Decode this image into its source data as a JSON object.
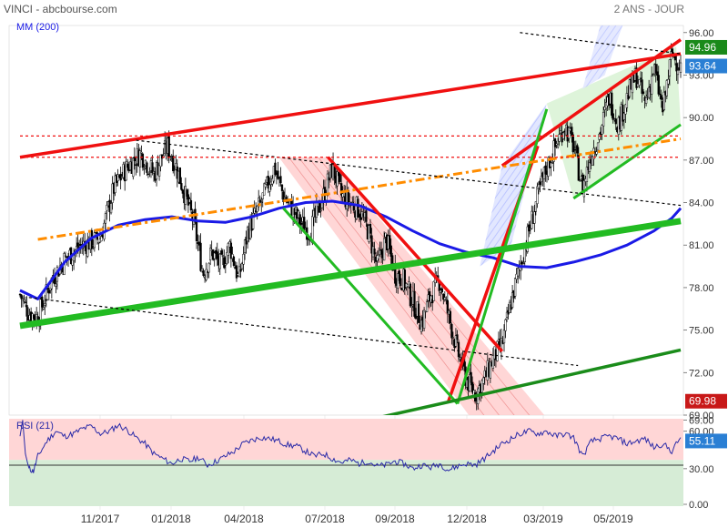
{
  "header": {
    "title": "VINCI - abcbourse.com",
    "period": "2 ANS - JOUR",
    "ma_label": "MM (200)",
    "rsi_label": "RSI (21)"
  },
  "colors": {
    "ma": "#1a1ae6",
    "candle": "#000000",
    "trend_red": "#f01010",
    "trend_green": "#22bb22",
    "trend_dark_green": "#1a8c1a",
    "trend_orange": "#ff8c00",
    "rsi_line": "#2a2aa8",
    "rsi_upper_bg": "#ffd6d6",
    "rsi_lower_bg": "#d6ecd6",
    "badge_green": "#1a8a1a",
    "badge_blue": "#2a7fd4",
    "badge_red": "#c81818"
  },
  "chart_data": [
    {
      "type": "candlestick",
      "title": "VINCI - abcbourse.com",
      "subtitle": "2 ANS - JOUR",
      "x_tick_labels": [
        "11/2017",
        "01/2018",
        "04/2018",
        "07/2018",
        "09/2018",
        "12/2018",
        "03/2019",
        "05/2019"
      ],
      "y_tick_labels": [
        "96.00",
        "93.00",
        "90.00",
        "87.00",
        "84.00",
        "81.00",
        "78.00",
        "75.00",
        "72.00",
        "69.00"
      ],
      "ylim": [
        69,
        96.5
      ],
      "price_badges": [
        {
          "value": "94.96",
          "y": 94.96,
          "color": "#1a8a1a"
        },
        {
          "value": "93.64",
          "y": 93.64,
          "color": "#2a7fd4"
        },
        {
          "value": "69.98",
          "y": 69.98,
          "color": "#c81818"
        }
      ],
      "price_path": [
        {
          "x": 0,
          "y": 77.5
        },
        {
          "x": 2,
          "y": 76.2
        },
        {
          "x": 4,
          "y": 75.9
        },
        {
          "x": 7,
          "y": 78.5
        },
        {
          "x": 10,
          "y": 80.0
        },
        {
          "x": 14,
          "y": 81.0
        },
        {
          "x": 18,
          "y": 81.5
        },
        {
          "x": 21,
          "y": 85.0
        },
        {
          "x": 24,
          "y": 86.5
        },
        {
          "x": 27,
          "y": 87.5
        },
        {
          "x": 30,
          "y": 86.0
        },
        {
          "x": 33,
          "y": 88.0
        },
        {
          "x": 35,
          "y": 86.5
        },
        {
          "x": 37,
          "y": 84.5
        },
        {
          "x": 39,
          "y": 82.5
        },
        {
          "x": 41,
          "y": 79.0
        },
        {
          "x": 43,
          "y": 80.5
        },
        {
          "x": 45,
          "y": 79.5
        },
        {
          "x": 47,
          "y": 81.0
        },
        {
          "x": 49,
          "y": 78.5
        },
        {
          "x": 51,
          "y": 82.0
        },
        {
          "x": 54,
          "y": 84.0
        },
        {
          "x": 57,
          "y": 86.5
        },
        {
          "x": 59,
          "y": 84.5
        },
        {
          "x": 61,
          "y": 83.5
        },
        {
          "x": 63,
          "y": 82.5
        },
        {
          "x": 65,
          "y": 82.0
        },
        {
          "x": 68,
          "y": 84.5
        },
        {
          "x": 70,
          "y": 86.5
        },
        {
          "x": 72,
          "y": 84.5
        },
        {
          "x": 74,
          "y": 84.0
        },
        {
          "x": 76,
          "y": 83.5
        },
        {
          "x": 78,
          "y": 82.0
        },
        {
          "x": 80,
          "y": 79.5
        },
        {
          "x": 82,
          "y": 81.5
        },
        {
          "x": 84,
          "y": 79.0
        },
        {
          "x": 86,
          "y": 78.5
        },
        {
          "x": 88,
          "y": 77.0
        },
        {
          "x": 90,
          "y": 75.5
        },
        {
          "x": 92,
          "y": 77.5
        },
        {
          "x": 94,
          "y": 78.5
        },
        {
          "x": 96,
          "y": 76.0
        },
        {
          "x": 98,
          "y": 73.5
        },
        {
          "x": 100,
          "y": 71.5
        },
        {
          "x": 102,
          "y": 70.5
        },
        {
          "x": 104,
          "y": 71.5
        },
        {
          "x": 106,
          "y": 73.0
        },
        {
          "x": 108,
          "y": 74.0
        },
        {
          "x": 110,
          "y": 77.0
        },
        {
          "x": 112,
          "y": 79.5
        },
        {
          "x": 114,
          "y": 82.0
        },
        {
          "x": 116,
          "y": 84.5
        },
        {
          "x": 118,
          "y": 86.5
        },
        {
          "x": 120,
          "y": 88.0
        },
        {
          "x": 122,
          "y": 89.5
        },
        {
          "x": 124,
          "y": 88.0
        },
        {
          "x": 126,
          "y": 85.0
        },
        {
          "x": 128,
          "y": 87.5
        },
        {
          "x": 130,
          "y": 89.0
        },
        {
          "x": 132,
          "y": 91.5
        },
        {
          "x": 134,
          "y": 89.5
        },
        {
          "x": 136,
          "y": 91.5
        },
        {
          "x": 138,
          "y": 93.0
        },
        {
          "x": 140,
          "y": 91.0
        },
        {
          "x": 142,
          "y": 93.5
        },
        {
          "x": 144,
          "y": 90.5
        },
        {
          "x": 146,
          "y": 94.5
        },
        {
          "x": 148,
          "y": 93.6
        }
      ],
      "ma200_path": [
        {
          "x": 0,
          "y": 77.8
        },
        {
          "x": 4,
          "y": 77.2
        },
        {
          "x": 10,
          "y": 79.8
        },
        {
          "x": 16,
          "y": 81.5
        },
        {
          "x": 22,
          "y": 82.4
        },
        {
          "x": 28,
          "y": 82.8
        },
        {
          "x": 34,
          "y": 83.0
        },
        {
          "x": 40,
          "y": 82.7
        },
        {
          "x": 46,
          "y": 82.6
        },
        {
          "x": 52,
          "y": 83.0
        },
        {
          "x": 58,
          "y": 83.6
        },
        {
          "x": 64,
          "y": 84.0
        },
        {
          "x": 70,
          "y": 84.1
        },
        {
          "x": 76,
          "y": 83.8
        },
        {
          "x": 82,
          "y": 83.0
        },
        {
          "x": 88,
          "y": 82.0
        },
        {
          "x": 94,
          "y": 81.1
        },
        {
          "x": 100,
          "y": 80.5
        },
        {
          "x": 106,
          "y": 80.1
        },
        {
          "x": 112,
          "y": 79.5
        },
        {
          "x": 118,
          "y": 79.4
        },
        {
          "x": 124,
          "y": 79.8
        },
        {
          "x": 130,
          "y": 80.3
        },
        {
          "x": 136,
          "y": 81.0
        },
        {
          "x": 142,
          "y": 82.0
        },
        {
          "x": 146,
          "y": 82.9
        },
        {
          "x": 148,
          "y": 83.6
        }
      ],
      "series": [
        {
          "name": "MM (200)"
        }
      ],
      "trendlines": [
        {
          "style": "red",
          "points": [
            [
              0,
              87.2
            ],
            [
              148,
              94.5
            ]
          ]
        },
        {
          "style": "red",
          "points": [
            [
              96,
              70.0
            ],
            [
              116,
              88.0
            ]
          ]
        },
        {
          "style": "red",
          "points": [
            [
              108,
              86.6
            ],
            [
              148,
              95.5
            ]
          ]
        },
        {
          "style": "red",
          "points": [
            [
              69,
              87.2
            ],
            [
              108,
              73.5
            ]
          ]
        },
        {
          "style": "green_thick",
          "points": [
            [
              0,
              75.3
            ],
            [
              148,
              82.7
            ]
          ]
        },
        {
          "style": "green",
          "points": [
            [
              59,
              83.6
            ],
            [
              98,
              69.8
            ]
          ]
        },
        {
          "style": "green",
          "points": [
            [
              98,
              69.8
            ],
            [
              118,
              90.6
            ]
          ]
        },
        {
          "style": "green",
          "points": [
            [
              124,
              84.3
            ],
            [
              148,
              89.5
            ]
          ]
        },
        {
          "style": "dark_green",
          "points": [
            [
              80,
              68.8
            ],
            [
              148,
              73.6
            ]
          ]
        },
        {
          "style": "orange_dashdot",
          "points": [
            [
              4,
              81.4
            ],
            [
              148,
              88.5
            ]
          ]
        },
        {
          "style": "black_dotted",
          "points": [
            [
              26,
              88.4
            ],
            [
              148,
              83.8
            ]
          ]
        },
        {
          "style": "black_dotted",
          "points": [
            [
              2,
              77.3
            ],
            [
              125,
              72.5
            ]
          ]
        },
        {
          "style": "black_dotted",
          "points": [
            [
              112,
              96.0
            ],
            [
              148,
              94.5
            ]
          ]
        },
        {
          "style": "red_dotted",
          "points": [
            [
              0,
              88.7
            ],
            [
              148,
              88.7
            ]
          ]
        },
        {
          "style": "red_dotted",
          "points": [
            [
              0,
              87.2
            ],
            [
              148,
              87.2
            ]
          ]
        }
      ],
      "channels": [
        {
          "fill": "red",
          "points": [
            [
              58,
              87.2
            ],
            [
              69,
              87.2
            ],
            [
              118,
              68.8
            ],
            [
              101,
              68.8
            ]
          ]
        },
        {
          "fill": "blue",
          "points": [
            [
              108,
              86.6
            ],
            [
              118,
              91.0
            ],
            [
              110,
              81.0
            ],
            [
              103,
              79.5
            ]
          ]
        },
        {
          "fill": "green",
          "points": [
            [
              118,
              91.0
            ],
            [
              147,
              95.0
            ],
            [
              148,
              89.5
            ],
            [
              124,
              84.3
            ]
          ]
        },
        {
          "fill": "blue_light",
          "points": [
            [
              126,
              92.0
            ],
            [
              130,
              96.5
            ],
            [
              135,
              96.5
            ],
            [
              131,
              93.0
            ]
          ]
        }
      ]
    },
    {
      "type": "line",
      "title": "RSI (21)",
      "y_tick_labels": [
        "69.00",
        "60.00",
        "30.00",
        "0.00"
      ],
      "ylim": [
        0,
        70
      ],
      "midline": 37,
      "badge": {
        "value": "55.11",
        "y": 55.11,
        "color": "#2a7fd4"
      },
      "values": [
        [
          0,
          56
        ],
        [
          0.6,
          69
        ],
        [
          1.2,
          42
        ],
        [
          2,
          30
        ],
        [
          3,
          28
        ],
        [
          4,
          40
        ],
        [
          6,
          52
        ],
        [
          8,
          60
        ],
        [
          10,
          56
        ],
        [
          12,
          58
        ],
        [
          14,
          62
        ],
        [
          16,
          64
        ],
        [
          18,
          58
        ],
        [
          20,
          60
        ],
        [
          22,
          65
        ],
        [
          24,
          61
        ],
        [
          26,
          55
        ],
        [
          28,
          50
        ],
        [
          30,
          42
        ],
        [
          32,
          38
        ],
        [
          34,
          34
        ],
        [
          36,
          38
        ],
        [
          38,
          36
        ],
        [
          40,
          39
        ],
        [
          42,
          33
        ],
        [
          44,
          36
        ],
        [
          46,
          40
        ],
        [
          48,
          44
        ],
        [
          50,
          50
        ],
        [
          52,
          53
        ],
        [
          54,
          55
        ],
        [
          56,
          54
        ],
        [
          58,
          52
        ],
        [
          60,
          49
        ],
        [
          62,
          48
        ],
        [
          64,
          44
        ],
        [
          66,
          40
        ],
        [
          68,
          42
        ],
        [
          70,
          38
        ],
        [
          72,
          35
        ],
        [
          74,
          37
        ],
        [
          76,
          34
        ],
        [
          78,
          36
        ],
        [
          80,
          32
        ],
        [
          82,
          33
        ],
        [
          84,
          36
        ],
        [
          86,
          34
        ],
        [
          88,
          30
        ],
        [
          90,
          33
        ],
        [
          92,
          31
        ],
        [
          94,
          34
        ],
        [
          96,
          29
        ],
        [
          98,
          32
        ],
        [
          100,
          34
        ],
        [
          102,
          33
        ],
        [
          104,
          38
        ],
        [
          106,
          44
        ],
        [
          108,
          50
        ],
        [
          110,
          54
        ],
        [
          112,
          58
        ],
        [
          114,
          60
        ],
        [
          116,
          58
        ],
        [
          118,
          60
        ],
        [
          120,
          56
        ],
        [
          122,
          58
        ],
        [
          124,
          55
        ],
        [
          126,
          40
        ],
        [
          128,
          52
        ],
        [
          130,
          54
        ],
        [
          132,
          56
        ],
        [
          134,
          54
        ],
        [
          136,
          50
        ],
        [
          138,
          52
        ],
        [
          140,
          54
        ],
        [
          142,
          47
        ],
        [
          144,
          50
        ],
        [
          146,
          44
        ],
        [
          148,
          55
        ]
      ]
    }
  ]
}
